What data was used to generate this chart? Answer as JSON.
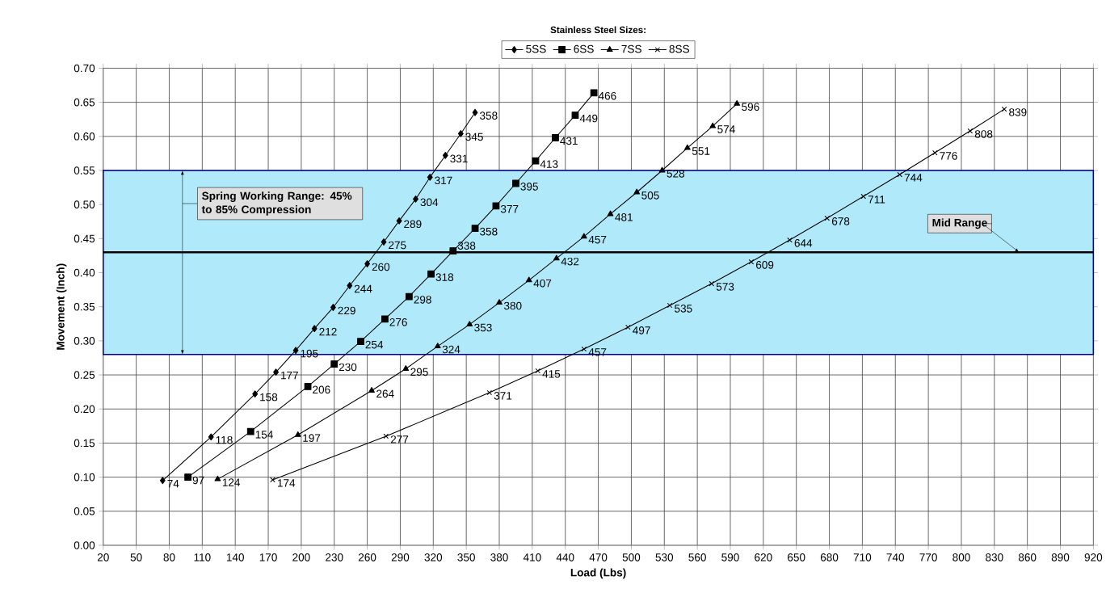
{
  "chart_data": {
    "type": "line",
    "legend_title": "Stainless Steel Sizes:",
    "xlabel": "Load (Lbs)",
    "ylabel": "Movement (Inch)",
    "xlim": [
      20,
      920
    ],
    "xticks": [
      20,
      50,
      80,
      110,
      140,
      170,
      200,
      230,
      260,
      290,
      320,
      350,
      380,
      410,
      440,
      470,
      500,
      530,
      560,
      590,
      620,
      650,
      680,
      710,
      740,
      770,
      800,
      830,
      860,
      890,
      920
    ],
    "ylim": [
      0,
      0.7
    ],
    "yticks": [
      {
        "value": 0,
        "label": "0.00"
      },
      {
        "value": 0.05,
        "label": "0.05"
      },
      {
        "value": 0.1,
        "label": "0.10"
      },
      {
        "value": 0.15,
        "label": "0.15"
      },
      {
        "value": 0.2,
        "label": "0.20"
      },
      {
        "value": 0.25,
        "label": "0.25"
      },
      {
        "value": 0.3,
        "label": "0.30"
      },
      {
        "value": 0.35,
        "label": "0.35"
      },
      {
        "value": 0.4,
        "label": "0.40"
      },
      {
        "value": 0.45,
        "label": "0.45"
      },
      {
        "value": 0.5,
        "label": "0.50"
      },
      {
        "value": 0.55,
        "label": "0.55"
      },
      {
        "value": 0.6,
        "label": "0.60"
      },
      {
        "value": 0.65,
        "label": "0.65"
      },
      {
        "value": 0.7,
        "label": "0.70"
      }
    ],
    "grid": true,
    "legend": "top",
    "line_style": "solid",
    "bands": [
      {
        "axis": "y",
        "from": 0.28,
        "to": 0.55,
        "label": "Spring Working Range: 45% to 85% Compression",
        "color": "#b0eafa"
      }
    ],
    "ref_lines": [
      {
        "axis": "y",
        "value": 0.43,
        "label": "Mid Range",
        "color": "#000000"
      }
    ],
    "series": [
      {
        "name": "5SS",
        "color": "#000000",
        "marker": "diamond",
        "x": [
          74,
          118,
          158,
          177,
          195,
          212,
          229,
          244,
          260,
          275,
          289,
          304,
          317,
          331,
          345,
          358
        ],
        "values": [
          0.095,
          0.159,
          0.222,
          0.254,
          0.286,
          0.318,
          0.349,
          0.381,
          0.413,
          0.445,
          0.476,
          0.508,
          0.54,
          0.572,
          0.604,
          0.635
        ]
      },
      {
        "name": "6SS",
        "color": "#000000",
        "marker": "square",
        "x": [
          97,
          154,
          206,
          230,
          254,
          276,
          298,
          318,
          338,
          358,
          377,
          395,
          413,
          431,
          449,
          466
        ],
        "values": [
          0.1,
          0.167,
          0.233,
          0.266,
          0.299,
          0.332,
          0.365,
          0.398,
          0.432,
          0.465,
          0.498,
          0.531,
          0.564,
          0.598,
          0.631,
          0.664
        ]
      },
      {
        "name": "7SS",
        "color": "#000000",
        "marker": "triangle",
        "x": [
          124,
          197,
          264,
          295,
          324,
          353,
          380,
          407,
          432,
          457,
          481,
          505,
          528,
          551,
          574,
          596
        ],
        "values": [
          0.097,
          0.162,
          0.227,
          0.259,
          0.292,
          0.324,
          0.356,
          0.389,
          0.421,
          0.453,
          0.486,
          0.518,
          0.55,
          0.583,
          0.615,
          0.648
        ]
      },
      {
        "name": "8SS",
        "color": "#000000",
        "marker": "cross",
        "x": [
          174,
          277,
          371,
          415,
          457,
          497,
          535,
          573,
          609,
          644,
          678,
          711,
          744,
          776,
          808,
          839
        ],
        "values": [
          0.096,
          0.16,
          0.224,
          0.256,
          0.288,
          0.32,
          0.352,
          0.384,
          0.416,
          0.448,
          0.48,
          0.512,
          0.544,
          0.576,
          0.608,
          0.64
        ]
      }
    ],
    "annotations": [
      {
        "text": "74",
        "x": 74,
        "y": 0.095
      },
      {
        "text": "118",
        "x": 118,
        "y": 0.159
      },
      {
        "text": "158",
        "x": 158,
        "y": 0.222
      },
      {
        "text": "177",
        "x": 177,
        "y": 0.254
      },
      {
        "text": "195",
        "x": 195,
        "y": 0.286
      },
      {
        "text": "212",
        "x": 212,
        "y": 0.318
      },
      {
        "text": "229",
        "x": 229,
        "y": 0.349
      },
      {
        "text": "244",
        "x": 244,
        "y": 0.381
      },
      {
        "text": "260",
        "x": 260,
        "y": 0.413
      },
      {
        "text": "275",
        "x": 275,
        "y": 0.445
      },
      {
        "text": "289",
        "x": 289,
        "y": 0.476
      },
      {
        "text": "304",
        "x": 304,
        "y": 0.508
      },
      {
        "text": "317",
        "x": 317,
        "y": 0.54
      },
      {
        "text": "331",
        "x": 331,
        "y": 0.572
      },
      {
        "text": "345",
        "x": 345,
        "y": 0.604
      },
      {
        "text": "358",
        "x": 358,
        "y": 0.635
      },
      {
        "text": "97",
        "x": 97,
        "y": 0.1
      },
      {
        "text": "154",
        "x": 154,
        "y": 0.167
      },
      {
        "text": "206",
        "x": 206,
        "y": 0.233
      },
      {
        "text": "230",
        "x": 230,
        "y": 0.266
      },
      {
        "text": "254",
        "x": 254,
        "y": 0.299
      },
      {
        "text": "276",
        "x": 276,
        "y": 0.332
      },
      {
        "text": "298",
        "x": 298,
        "y": 0.365
      },
      {
        "text": "318",
        "x": 318,
        "y": 0.398
      },
      {
        "text": "338",
        "x": 338,
        "y": 0.432
      },
      {
        "text": "358",
        "x": 358,
        "y": 0.465
      },
      {
        "text": "377",
        "x": 377,
        "y": 0.498
      },
      {
        "text": "395",
        "x": 395,
        "y": 0.531
      },
      {
        "text": "413",
        "x": 413,
        "y": 0.564
      },
      {
        "text": "431",
        "x": 431,
        "y": 0.598
      },
      {
        "text": "449",
        "x": 449,
        "y": 0.631
      },
      {
        "text": "466",
        "x": 466,
        "y": 0.664
      },
      {
        "text": "124",
        "x": 124,
        "y": 0.097
      },
      {
        "text": "197",
        "x": 197,
        "y": 0.162
      },
      {
        "text": "264",
        "x": 264,
        "y": 0.227
      },
      {
        "text": "295",
        "x": 295,
        "y": 0.259
      },
      {
        "text": "324",
        "x": 324,
        "y": 0.292
      },
      {
        "text": "353",
        "x": 353,
        "y": 0.324
      },
      {
        "text": "380",
        "x": 380,
        "y": 0.356
      },
      {
        "text": "407",
        "x": 407,
        "y": 0.389
      },
      {
        "text": "432",
        "x": 432,
        "y": 0.421
      },
      {
        "text": "457",
        "x": 457,
        "y": 0.453
      },
      {
        "text": "481",
        "x": 481,
        "y": 0.486
      },
      {
        "text": "505",
        "x": 505,
        "y": 0.518
      },
      {
        "text": "528",
        "x": 528,
        "y": 0.55
      },
      {
        "text": "551",
        "x": 551,
        "y": 0.583
      },
      {
        "text": "574",
        "x": 574,
        "y": 0.615
      },
      {
        "text": "596",
        "x": 596,
        "y": 0.648
      },
      {
        "text": "174",
        "x": 174,
        "y": 0.096
      },
      {
        "text": "277",
        "x": 277,
        "y": 0.16
      },
      {
        "text": "371",
        "x": 371,
        "y": 0.224
      },
      {
        "text": "415",
        "x": 415,
        "y": 0.256
      },
      {
        "text": "457",
        "x": 457,
        "y": 0.288
      },
      {
        "text": "497",
        "x": 497,
        "y": 0.32
      },
      {
        "text": "535",
        "x": 535,
        "y": 0.352
      },
      {
        "text": "573",
        "x": 573,
        "y": 0.384
      },
      {
        "text": "609",
        "x": 609,
        "y": 0.416
      },
      {
        "text": "644",
        "x": 644,
        "y": 0.448
      },
      {
        "text": "678",
        "x": 678,
        "y": 0.48
      },
      {
        "text": "711",
        "x": 711,
        "y": 0.512
      },
      {
        "text": "744",
        "x": 744,
        "y": 0.544
      },
      {
        "text": "776",
        "x": 776,
        "y": 0.576
      },
      {
        "text": "808",
        "x": 808,
        "y": 0.608
      },
      {
        "text": "839",
        "x": 839,
        "y": 0.64
      }
    ]
  }
}
